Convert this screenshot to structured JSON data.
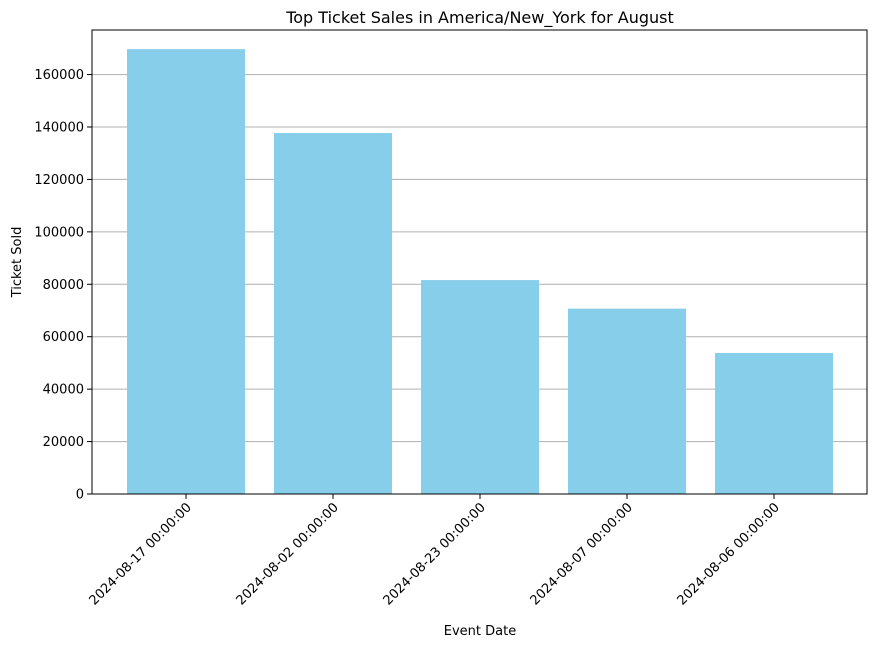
{
  "chart_data": {
    "type": "bar",
    "title": "Top Ticket Sales in America/New_York for August",
    "xlabel": "Event Date",
    "ylabel": "Ticket Sold",
    "categories": [
      "2024-08-17 00:00:00",
      "2024-08-02 00:00:00",
      "2024-08-23 00:00:00",
      "2024-08-07 00:00:00",
      "2024-08-06 00:00:00"
    ],
    "values": [
      169700,
      137700,
      81600,
      70700,
      53800
    ],
    "ylim": [
      0,
      177000
    ],
    "yticks": [
      0,
      20000,
      40000,
      60000,
      80000,
      100000,
      120000,
      140000,
      160000
    ],
    "ytick_labels": [
      "0",
      "20000",
      "40000",
      "60000",
      "80000",
      "100000",
      "120000",
      "140000",
      "160000"
    ],
    "grid": "y",
    "legend": "none",
    "bar_color": "#87ceeb",
    "grid_color": "#b0b0b0"
  }
}
